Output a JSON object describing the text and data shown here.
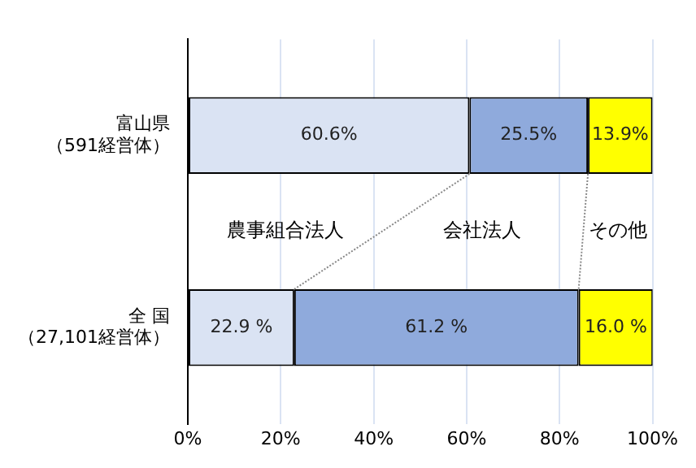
{
  "chart_data": {
    "type": "bar",
    "orientation": "horizontal",
    "stacked": true,
    "categories": [
      "富山県（591経営体）",
      "全 国（27,101経営体）"
    ],
    "series": [
      {
        "name": "農事組合法人",
        "color": "#dae3f3",
        "values": [
          60.6,
          22.9
        ],
        "value_labels": [
          "60.6%",
          "22.9 %"
        ]
      },
      {
        "name": "会社法人",
        "color": "#8faadc",
        "values": [
          25.5,
          61.2
        ],
        "value_labels": [
          "25.5%",
          "61.2 %"
        ]
      },
      {
        "name": "その他",
        "color": "#ffff00",
        "values": [
          13.9,
          16.0
        ],
        "value_labels": [
          "13.9%",
          "16.0 %"
        ]
      }
    ],
    "xlim": [
      0,
      100
    ],
    "xticks": [
      {
        "value": 0,
        "label": "0%"
      },
      {
        "value": 20,
        "label": "20%"
      },
      {
        "value": 40,
        "label": "40%"
      },
      {
        "value": 60,
        "label": "60%"
      },
      {
        "value": 80,
        "label": "80%"
      },
      {
        "value": 100,
        "label": "100%"
      }
    ],
    "grid": "x",
    "legend": false
  }
}
